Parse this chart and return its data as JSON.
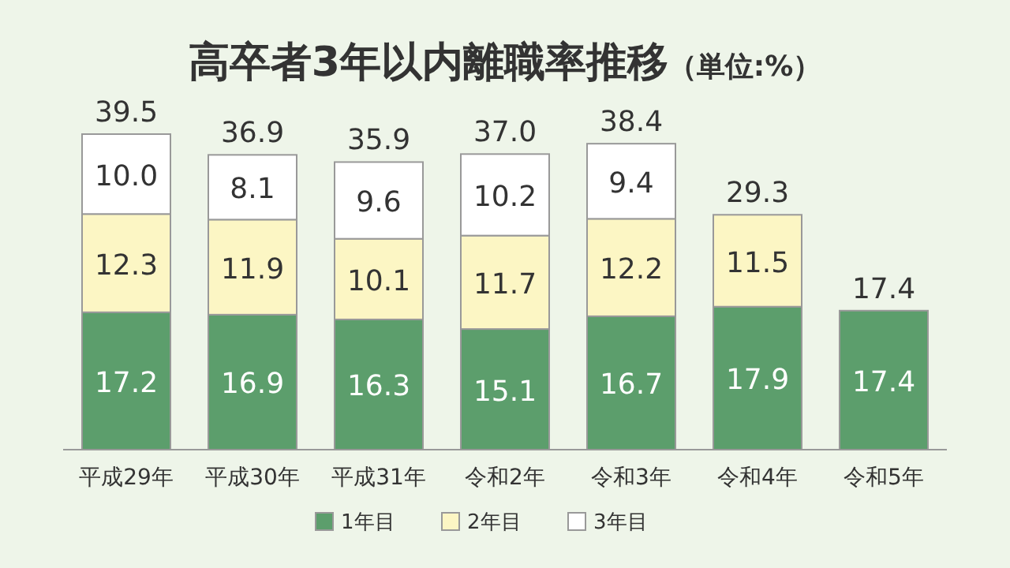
{
  "chart_data": {
    "type": "bar",
    "title": "高卒者3年以内離職率推移",
    "subtitle": "（単位:%）",
    "categories": [
      "平成29年",
      "平成30年",
      "平成31年",
      "令和2年",
      "令和3年",
      "令和4年",
      "令和5年"
    ],
    "stacked": true,
    "legend": "bottom",
    "series": [
      {
        "name": "1年目",
        "color": "#5c9e6c",
        "values": [
          17.2,
          16.9,
          16.3,
          15.1,
          16.7,
          17.9,
          17.4
        ],
        "value_labels": [
          "17.2",
          "16.9",
          "16.3",
          "15.1",
          "16.7",
          "17.9",
          "17.4"
        ]
      },
      {
        "name": "2年目",
        "color": "#fcf6c4",
        "values": [
          12.3,
          11.9,
          10.1,
          11.7,
          12.2,
          11.5,
          null
        ],
        "value_labels": [
          "12.3",
          "11.9",
          "10.1",
          "11.7",
          "12.2",
          "11.5",
          null
        ]
      },
      {
        "name": "3年目",
        "color": "#ffffff",
        "values": [
          10.0,
          8.1,
          9.6,
          10.2,
          9.4,
          null,
          null
        ],
        "value_labels": [
          "10.0",
          "8.1",
          "9.6",
          "10.2",
          "9.4",
          null,
          null
        ]
      }
    ],
    "totals": [
      "39.5",
      "36.9",
      "35.9",
      "37.0",
      "38.4",
      "29.3",
      "17.4"
    ]
  }
}
